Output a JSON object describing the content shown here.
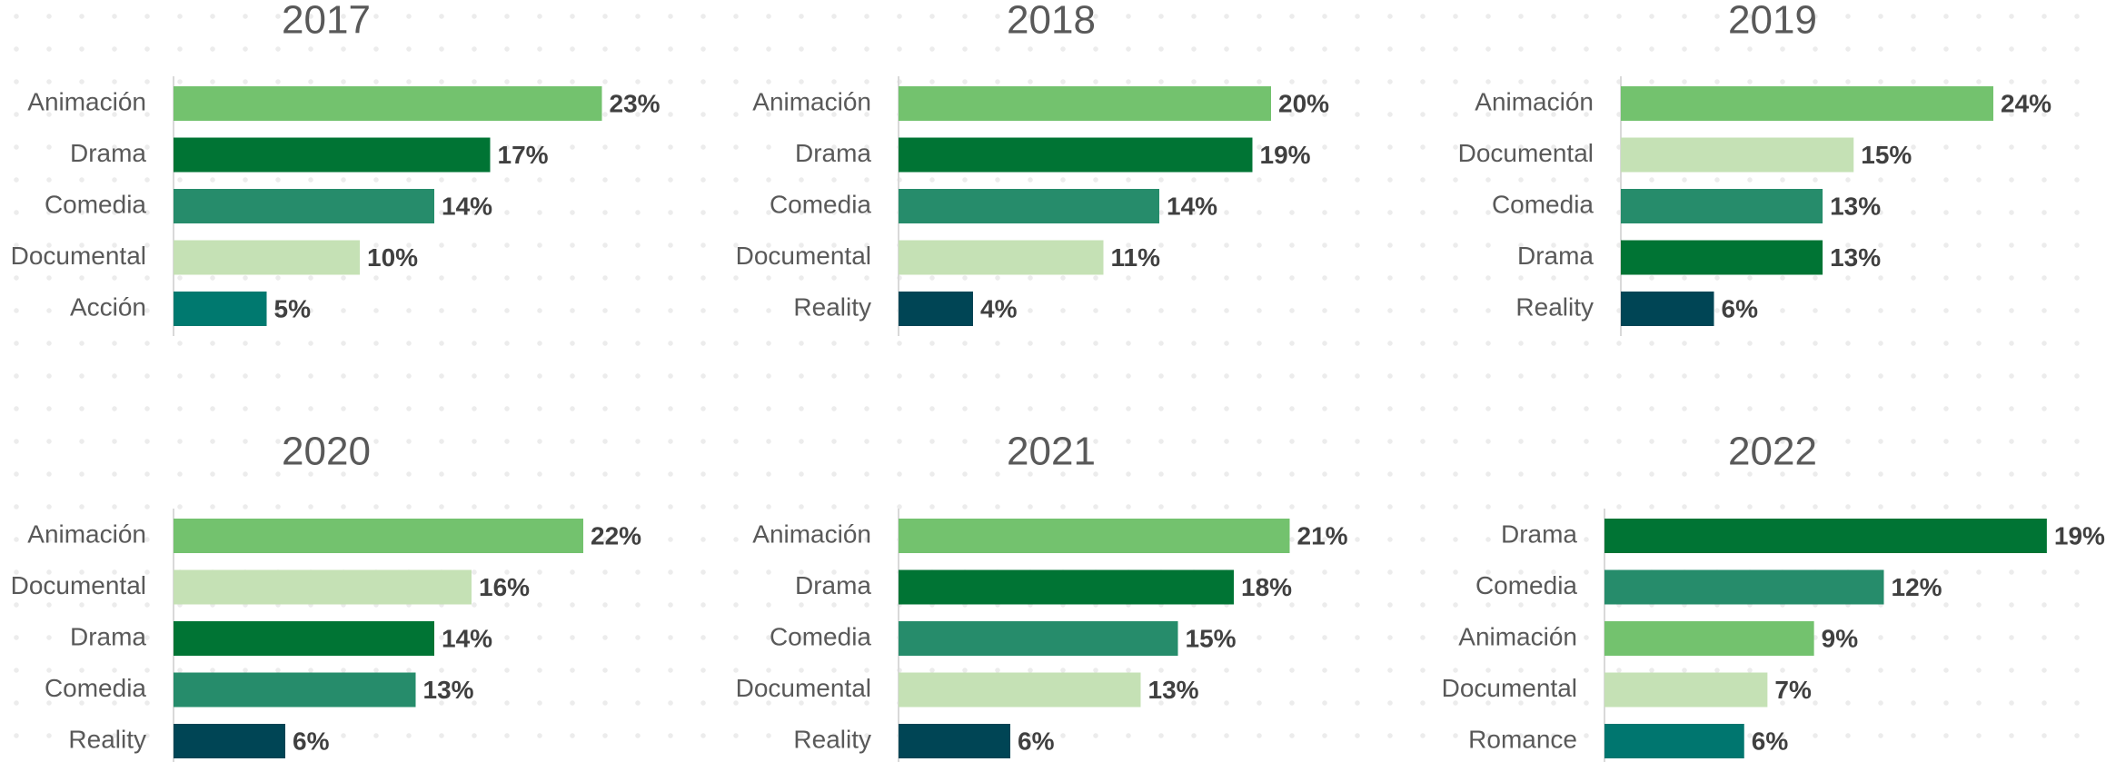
{
  "chart_data": [
    {
      "type": "bar",
      "orientation": "horizontal",
      "title": "2017",
      "categories": [
        "Animación",
        "Drama",
        "Comedia",
        "Documental",
        "Acción"
      ],
      "values": [
        23,
        17,
        14,
        10,
        5
      ],
      "value_labels": [
        "23%",
        "17%",
        "14%",
        "10%",
        "5%"
      ],
      "colors": [
        "#73c26e",
        "#007434",
        "#268c6b",
        "#c5e1b5",
        "#00796f"
      ],
      "xlim": [
        0,
        30
      ]
    },
    {
      "type": "bar",
      "orientation": "horizontal",
      "title": "2018",
      "categories": [
        "Animación",
        "Drama",
        "Comedia",
        "Documental",
        "Reality"
      ],
      "values": [
        20,
        19,
        14,
        11,
        4
      ],
      "value_labels": [
        "20%",
        "19%",
        "14%",
        "11%",
        "4%"
      ],
      "colors": [
        "#73c26e",
        "#007434",
        "#268c6b",
        "#c5e1b5",
        "#004555"
      ],
      "xlim": [
        0,
        30
      ]
    },
    {
      "type": "bar",
      "orientation": "horizontal",
      "title": "2019",
      "categories": [
        "Animación",
        "Documental",
        "Comedia",
        "Drama",
        "Reality"
      ],
      "values": [
        24,
        15,
        13,
        13,
        6
      ],
      "value_labels": [
        "24%",
        "15%",
        "13%",
        "13%",
        "6%"
      ],
      "colors": [
        "#73c26e",
        "#c5e1b5",
        "#268c6b",
        "#007434",
        "#004555"
      ],
      "xlim": [
        0,
        36
      ]
    },
    {
      "type": "bar",
      "orientation": "horizontal",
      "title": "2020",
      "categories": [
        "Animación",
        "Documental",
        "Drama",
        "Comedia",
        "Reality"
      ],
      "values": [
        22,
        16,
        14,
        13,
        6
      ],
      "value_labels": [
        "22%",
        "16%",
        "14%",
        "13%",
        "6%"
      ],
      "colors": [
        "#73c26e",
        "#c5e1b5",
        "#007434",
        "#268c6b",
        "#004555"
      ],
      "xlim": [
        0,
        30
      ]
    },
    {
      "type": "bar",
      "orientation": "horizontal",
      "title": "2021",
      "categories": [
        "Animación",
        "Drama",
        "Comedia",
        "Documental",
        "Reality"
      ],
      "values": [
        21,
        18,
        15,
        13,
        6
      ],
      "value_labels": [
        "21%",
        "18%",
        "15%",
        "13%",
        "6%"
      ],
      "colors": [
        "#73c26e",
        "#007434",
        "#268c6b",
        "#c5e1b5",
        "#004555"
      ],
      "xlim": [
        0,
        30
      ]
    },
    {
      "type": "bar",
      "orientation": "horizontal",
      "title": "2022",
      "categories": [
        "Drama",
        "Comedia",
        "Animación",
        "Documental",
        "Romance"
      ],
      "values": [
        19,
        12,
        9,
        7,
        6
      ],
      "value_labels": [
        "19%",
        "12%",
        "9%",
        "7%",
        "6%"
      ],
      "colors": [
        "#007434",
        "#268c6b",
        "#73c26e",
        "#c5e1b5",
        "#00766f"
      ],
      "xlim": [
        0,
        24
      ]
    }
  ]
}
